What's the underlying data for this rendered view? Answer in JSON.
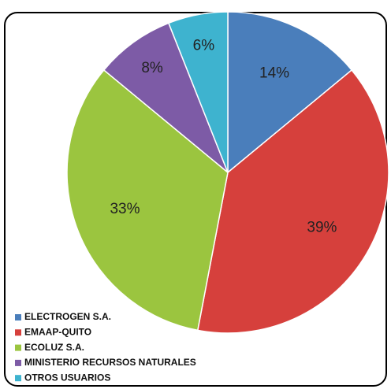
{
  "chart_data": {
    "type": "pie",
    "categories": [
      "ELECTROGEN S.A.",
      "EMAAP-QUITO",
      "ECOLUZ S.A.",
      "MINISTERIO RECURSOS NATURALES",
      "OTROS USUARIOS"
    ],
    "values": [
      14,
      39,
      33,
      8,
      6
    ],
    "value_labels": [
      "14%",
      "39%",
      "33%",
      "8%",
      "6%"
    ],
    "colors": [
      "#4a7ebb",
      "#d6403c",
      "#9bc53f",
      "#7d5ba6",
      "#3eb3cf"
    ],
    "legend": "bottom-left"
  }
}
